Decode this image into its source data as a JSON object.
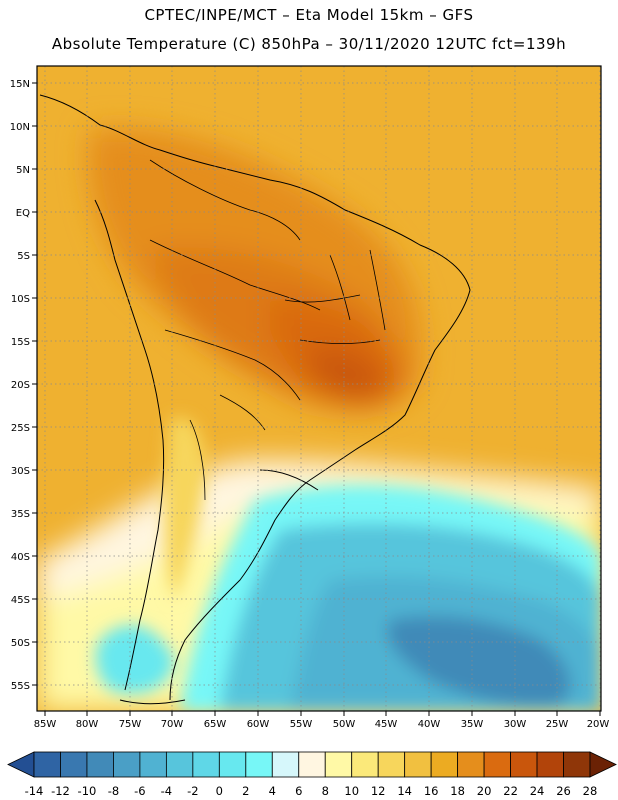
{
  "title": {
    "line1": "CPTEC/INPE/MCT –  Eta Model 15km – GFS",
    "line2": "Absolute Temperature (C) 850hPa – 30/11/2020 12UTC fct=139h"
  },
  "axes": {
    "lat_labels": [
      "15N",
      "10N",
      "5N",
      "EQ",
      "5S",
      "10S",
      "15S",
      "20S",
      "25S",
      "30S",
      "35S",
      "40S",
      "45S",
      "50S",
      "55S"
    ],
    "lon_labels": [
      "85W",
      "80W",
      "75W",
      "70W",
      "65W",
      "60W",
      "55W",
      "50W",
      "45W",
      "40W",
      "35W",
      "30W",
      "25W",
      "20W"
    ],
    "lat_range": [
      17.5,
      -57.5
    ],
    "lon_range": [
      -86,
      -20
    ]
  },
  "colorbar": {
    "labels": [
      "-14",
      "-12",
      "-10",
      "-8",
      "-6",
      "-4",
      "-2",
      "0",
      "2",
      "4",
      "6",
      "8",
      "10",
      "12",
      "14",
      "16",
      "18",
      "20",
      "22",
      "24",
      "26",
      "28"
    ],
    "colors": [
      "#234f93",
      "#2f64a4",
      "#3978b0",
      "#418ab8",
      "#4a9fc6",
      "#50b2d2",
      "#57c5dc",
      "#5fd7e7",
      "#67e8ef",
      "#77f7f7",
      "#d6f7fb",
      "#fff6e1",
      "#fff9a6",
      "#fbe97a",
      "#f7d65c",
      "#f1c040",
      "#ecab22",
      "#e58e1c",
      "#da6b10",
      "#c9560c",
      "#b2440a",
      "#8f3608",
      "#6b2205"
    ]
  },
  "land_color": "#e2a028",
  "chart_data": {
    "type": "heatmap",
    "title": "Absolute Temperature (C) 850hPa",
    "variable": "temperature",
    "units": "C",
    "level": "850hPa",
    "model": "Eta Model 15km - GFS",
    "valid": "30/11/2020 12UTC",
    "forecast_hour": "fct=139h",
    "lon_range": [
      -86,
      -20
    ],
    "lat_range": [
      -57.5,
      17.5
    ],
    "color_scale_min": -14,
    "color_scale_max": 28,
    "color_scale_step": 2
  }
}
